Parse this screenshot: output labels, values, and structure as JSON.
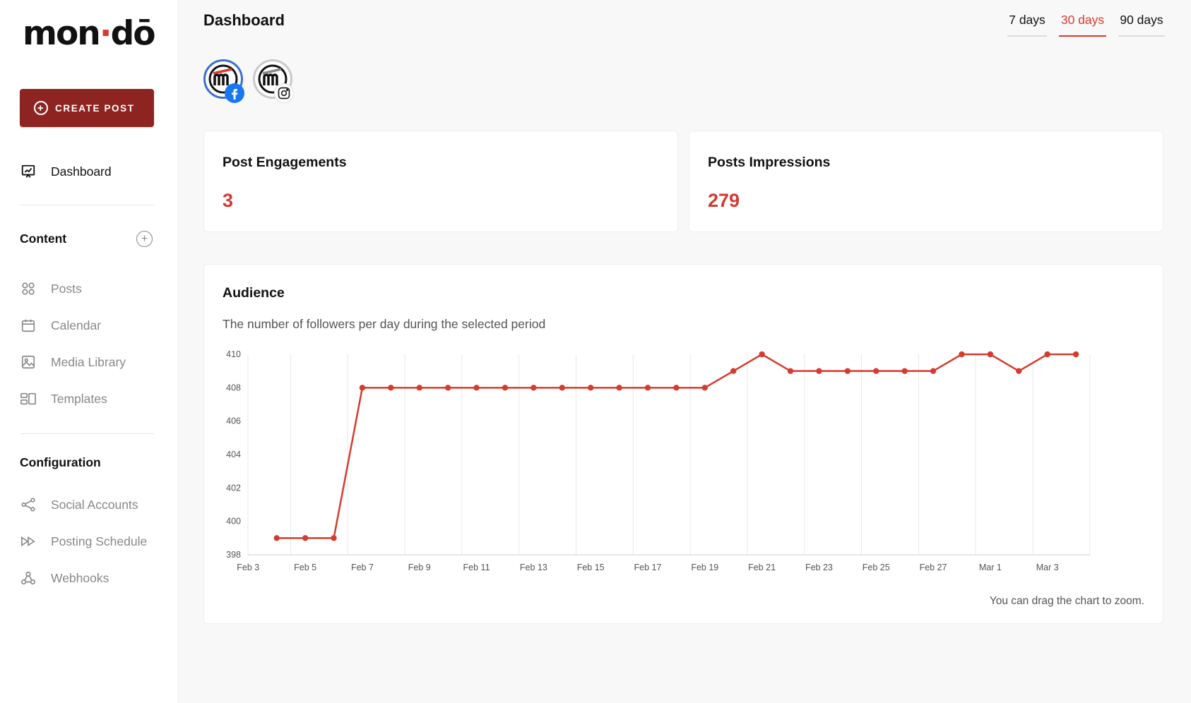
{
  "app": {
    "logo_text_1": "mon",
    "logo_dot": "·",
    "logo_text_2": "d",
    "logo_text_3": "ō",
    "brand_color": "#d63b2f"
  },
  "sidebar": {
    "create_label": "CREATE POST",
    "dashboard_label": "Dashboard",
    "content_title": "Content",
    "content_items": [
      {
        "label": "Posts",
        "icon": "posts-grid-icon"
      },
      {
        "label": "Calendar",
        "icon": "calendar-icon"
      },
      {
        "label": "Media Library",
        "icon": "image-icon"
      },
      {
        "label": "Templates",
        "icon": "templates-icon"
      }
    ],
    "config_title": "Configuration",
    "config_items": [
      {
        "label": "Social Accounts",
        "icon": "share-icon"
      },
      {
        "label": "Posting Schedule",
        "icon": "fast-forward-icon"
      },
      {
        "label": "Webhooks",
        "icon": "webhook-icon"
      }
    ]
  },
  "header": {
    "title": "Dashboard",
    "ranges": [
      "7 days",
      "30 days",
      "90 days"
    ],
    "active_range": "30 days"
  },
  "accounts": [
    {
      "network": "facebook",
      "icon": "facebook-icon"
    },
    {
      "network": "instagram",
      "icon": "instagram-icon"
    }
  ],
  "stats": {
    "engagements_title": "Post Engagements",
    "engagements_value": "3",
    "impressions_title": "Posts Impressions",
    "impressions_value": "279"
  },
  "audience": {
    "title": "Audience",
    "subtitle": "The number of followers per day during the selected period",
    "hint": "You can drag the chart to zoom."
  },
  "chart_data": {
    "type": "line",
    "color": "#d63b2f",
    "x": [
      "Feb 3",
      "Feb 4",
      "Feb 5",
      "Feb 6",
      "Feb 7",
      "Feb 8",
      "Feb 9",
      "Feb 10",
      "Feb 11",
      "Feb 12",
      "Feb 13",
      "Feb 14",
      "Feb 15",
      "Feb 16",
      "Feb 17",
      "Feb 18",
      "Feb 19",
      "Feb 20",
      "Feb 21",
      "Feb 22",
      "Feb 23",
      "Feb 24",
      "Feb 25",
      "Feb 26",
      "Feb 27",
      "Feb 28",
      "Mar 1",
      "Mar 2",
      "Mar 3",
      "Mar 4"
    ],
    "series": [
      {
        "values": [
          null,
          399,
          399,
          399,
          408,
          408,
          408,
          408,
          408,
          408,
          408,
          408,
          408,
          408,
          408,
          408,
          408,
          409,
          410,
          409,
          409,
          409,
          409,
          409,
          409,
          410,
          410,
          409,
          410,
          410
        ]
      }
    ],
    "ytick_labels": [
      "410",
      "408",
      "406",
      "404",
      "402",
      "400",
      "398"
    ],
    "xtick_labels": [
      "Feb 3",
      "Feb 5",
      "Feb 7",
      "Feb 9",
      "Feb 11",
      "Feb 13",
      "Feb 15",
      "Feb 17",
      "Feb 19",
      "Feb 21",
      "Feb 23",
      "Feb 25",
      "Feb 27",
      "Mar 1",
      "Mar 3"
    ],
    "ylim": [
      398,
      410
    ],
    "grid": "vertical",
    "legend": "none"
  }
}
